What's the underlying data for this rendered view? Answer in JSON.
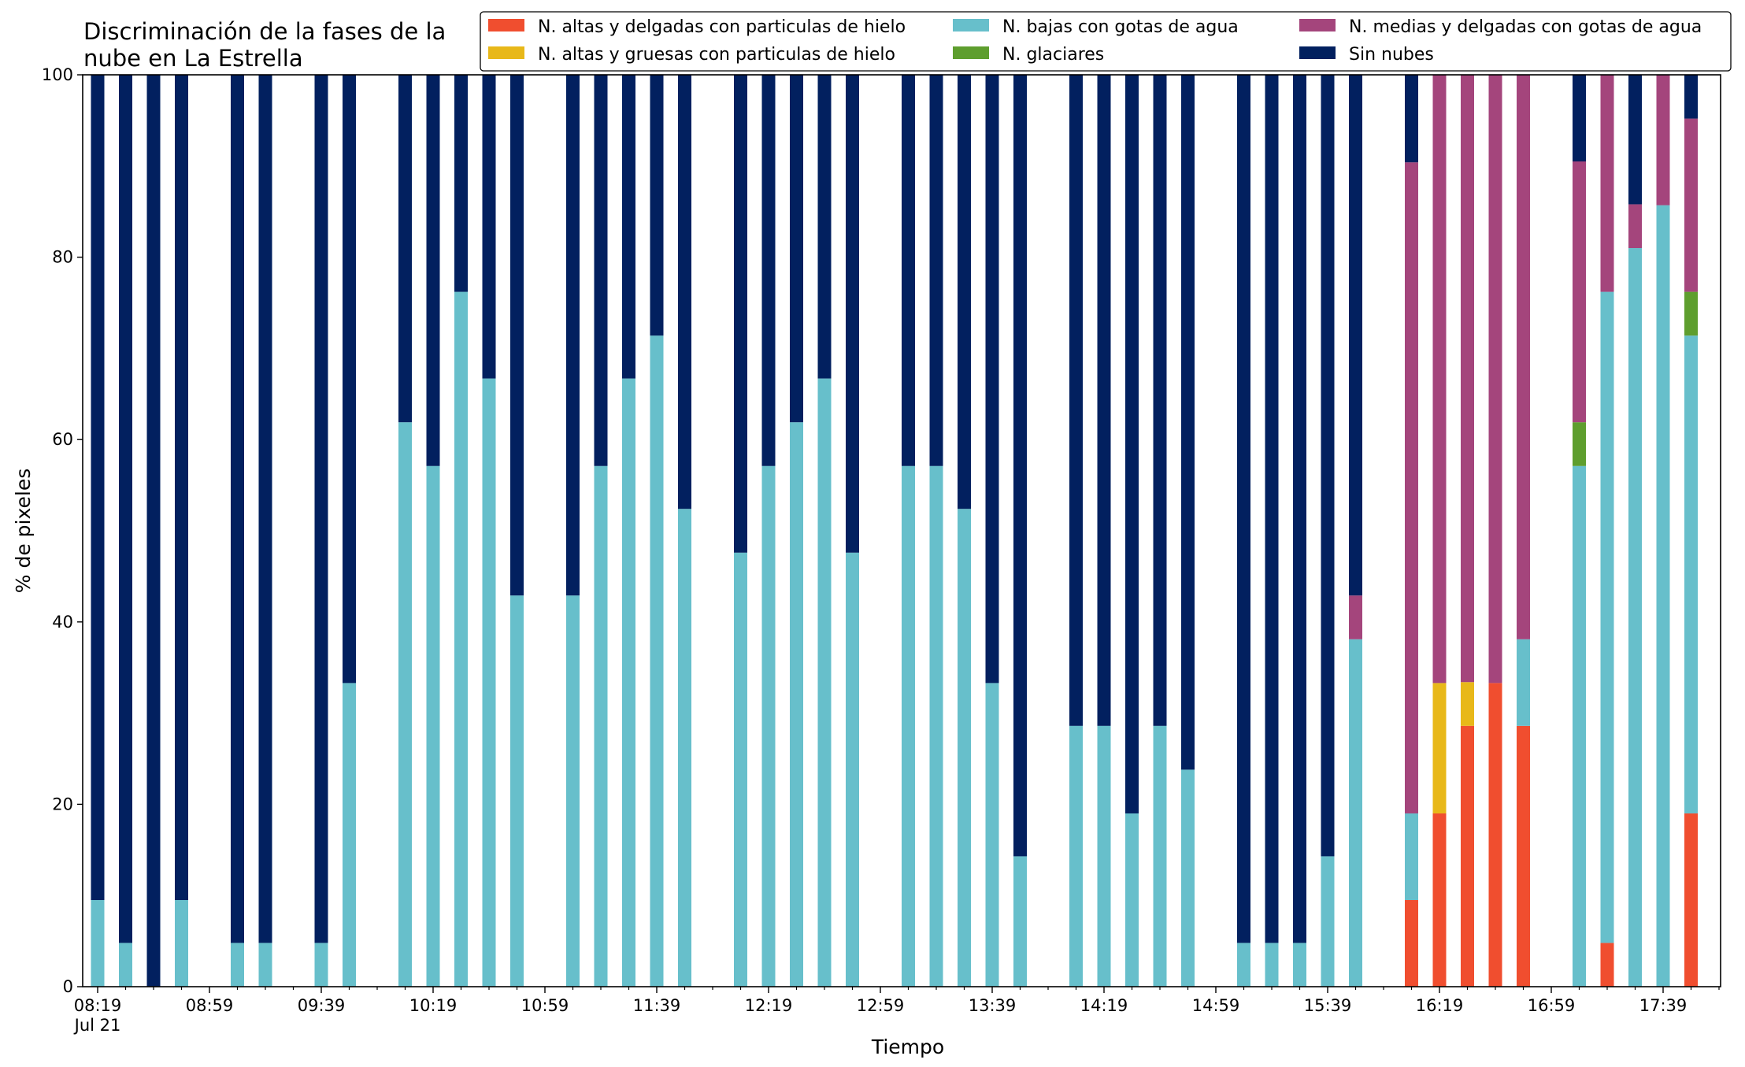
{
  "chart_data": {
    "type": "bar",
    "stacked": true,
    "title_lines": [
      "Discriminación de la fases de la",
      "nube en La Estrella"
    ],
    "xlabel": "Tiempo",
    "ylabel": "% de pixeles",
    "ylim": [
      0,
      100
    ],
    "yticks": [
      "0",
      "20",
      "40",
      "60",
      "80",
      "100"
    ],
    "grid": false,
    "legend_position": "top-right",
    "x_major_ticks": [
      {
        "label": "08:19",
        "sub": "Jul 21",
        "bin": 0
      },
      {
        "label": "08:59",
        "bin": 4
      },
      {
        "label": "09:39",
        "bin": 8
      },
      {
        "label": "10:19",
        "bin": 12
      },
      {
        "label": "10:59",
        "bin": 16
      },
      {
        "label": "11:39",
        "bin": 20
      },
      {
        "label": "12:19",
        "bin": 24
      },
      {
        "label": "12:59",
        "bin": 28
      },
      {
        "label": "13:39",
        "bin": 32
      },
      {
        "label": "14:19",
        "bin": 36
      },
      {
        "label": "14:59",
        "bin": 40
      },
      {
        "label": "15:39",
        "bin": 44
      },
      {
        "label": "16:19",
        "bin": 48
      },
      {
        "label": "16:59",
        "bin": 52
      },
      {
        "label": "17:39",
        "bin": 56
      }
    ],
    "x_bins_total": 59,
    "series": [
      {
        "key": "alt_del_hielo",
        "name": "N. altas y delgadas con particulas de hielo",
        "color": "#f04e2f"
      },
      {
        "key": "alt_grue_hielo",
        "name": "N. altas y gruesas con particulas de hielo",
        "color": "#e8b819"
      },
      {
        "key": "bajas_agua",
        "name": "N. bajas con gotas de agua",
        "color": "#67bfcb"
      },
      {
        "key": "glaciares",
        "name": "N. glaciares",
        "color": "#5e9e2e"
      },
      {
        "key": "medias_agua",
        "name": "N. medias y delgadas con gotas de agua",
        "color": "#a4457c"
      },
      {
        "key": "sin_nubes",
        "name": "Sin nubes",
        "color": "#02205f"
      }
    ],
    "bars": [
      {
        "bin": 0,
        "values": [
          0,
          0,
          9.5,
          0,
          0,
          90.5
        ]
      },
      {
        "bin": 1,
        "values": [
          0,
          0,
          4.8,
          0,
          0,
          95.2
        ]
      },
      {
        "bin": 2,
        "values": [
          0,
          0,
          0,
          0,
          0,
          100
        ]
      },
      {
        "bin": 3,
        "values": [
          0,
          0,
          9.5,
          0,
          0,
          90.5
        ]
      },
      {
        "bin": 5,
        "values": [
          0,
          0,
          4.8,
          0,
          0,
          95.2
        ]
      },
      {
        "bin": 6,
        "values": [
          0,
          0,
          4.8,
          0,
          0,
          95.2
        ]
      },
      {
        "bin": 8,
        "values": [
          0,
          0,
          4.8,
          0,
          0,
          95.2
        ]
      },
      {
        "bin": 9,
        "values": [
          0,
          0,
          33.3,
          0,
          0,
          66.7
        ]
      },
      {
        "bin": 11,
        "values": [
          0,
          0,
          61.9,
          0,
          0,
          38.1
        ]
      },
      {
        "bin": 12,
        "values": [
          0,
          0,
          57.1,
          0,
          0,
          42.9
        ]
      },
      {
        "bin": 13,
        "values": [
          0,
          0,
          76.2,
          0,
          0,
          23.8
        ]
      },
      {
        "bin": 14,
        "values": [
          0,
          0,
          66.7,
          0,
          0,
          33.3
        ]
      },
      {
        "bin": 15,
        "values": [
          0,
          0,
          42.9,
          0,
          0,
          57.1
        ]
      },
      {
        "bin": 17,
        "values": [
          0,
          0,
          42.9,
          0,
          0,
          57.1
        ]
      },
      {
        "bin": 18,
        "values": [
          0,
          0,
          57.1,
          0,
          0,
          42.9
        ]
      },
      {
        "bin": 19,
        "values": [
          0,
          0,
          66.7,
          0,
          0,
          33.3
        ]
      },
      {
        "bin": 20,
        "values": [
          0,
          0,
          71.4,
          0,
          0,
          28.6
        ]
      },
      {
        "bin": 21,
        "values": [
          0,
          0,
          52.4,
          0,
          0,
          47.6
        ]
      },
      {
        "bin": 23,
        "values": [
          0,
          0,
          47.6,
          0,
          0,
          52.4
        ]
      },
      {
        "bin": 24,
        "values": [
          0,
          0,
          57.1,
          0,
          0,
          42.9
        ]
      },
      {
        "bin": 25,
        "values": [
          0,
          0,
          61.9,
          0,
          0,
          38.1
        ]
      },
      {
        "bin": 26,
        "values": [
          0,
          0,
          66.7,
          0,
          0,
          33.3
        ]
      },
      {
        "bin": 27,
        "values": [
          0,
          0,
          47.6,
          0,
          0,
          52.4
        ]
      },
      {
        "bin": 29,
        "values": [
          0,
          0,
          57.1,
          0,
          0,
          42.9
        ]
      },
      {
        "bin": 30,
        "values": [
          0,
          0,
          57.1,
          0,
          0,
          42.9
        ]
      },
      {
        "bin": 31,
        "values": [
          0,
          0,
          52.4,
          0,
          0,
          47.6
        ]
      },
      {
        "bin": 32,
        "values": [
          0,
          0,
          33.3,
          0,
          0,
          66.7
        ]
      },
      {
        "bin": 33,
        "values": [
          0,
          0,
          14.3,
          0,
          0,
          85.7
        ]
      },
      {
        "bin": 35,
        "values": [
          0,
          0,
          28.6,
          0,
          0,
          71.4
        ]
      },
      {
        "bin": 36,
        "values": [
          0,
          0,
          28.6,
          0,
          0,
          71.4
        ]
      },
      {
        "bin": 37,
        "values": [
          0,
          0,
          19.0,
          0,
          0,
          81.0
        ]
      },
      {
        "bin": 38,
        "values": [
          0,
          0,
          28.6,
          0,
          0,
          71.4
        ]
      },
      {
        "bin": 39,
        "values": [
          0,
          0,
          23.8,
          0,
          0,
          76.2
        ]
      },
      {
        "bin": 41,
        "values": [
          0,
          0,
          4.8,
          0,
          0,
          95.2
        ]
      },
      {
        "bin": 42,
        "values": [
          0,
          0,
          4.8,
          0,
          0,
          95.2
        ]
      },
      {
        "bin": 43,
        "values": [
          0,
          0,
          4.8,
          0,
          0,
          95.2
        ]
      },
      {
        "bin": 44,
        "values": [
          0,
          0,
          14.3,
          0,
          0,
          85.7
        ]
      },
      {
        "bin": 45,
        "values": [
          0,
          0,
          38.1,
          0,
          4.8,
          57.1
        ]
      },
      {
        "bin": 47,
        "values": [
          9.5,
          0,
          9.5,
          0,
          71.4,
          9.6
        ]
      },
      {
        "bin": 48,
        "values": [
          19.0,
          14.3,
          0,
          0,
          66.7,
          0
        ]
      },
      {
        "bin": 49,
        "values": [
          28.6,
          4.8,
          0,
          0,
          66.6,
          0
        ]
      },
      {
        "bin": 50,
        "values": [
          33.3,
          0,
          0,
          0,
          66.7,
          0
        ]
      },
      {
        "bin": 51,
        "values": [
          28.6,
          0,
          9.5,
          0,
          61.9,
          0
        ]
      },
      {
        "bin": 53,
        "values": [
          0,
          0,
          57.1,
          4.8,
          28.6,
          9.5
        ]
      },
      {
        "bin": 54,
        "values": [
          4.8,
          0,
          71.4,
          0,
          23.8,
          0
        ]
      },
      {
        "bin": 55,
        "values": [
          0,
          0,
          81.0,
          0,
          4.8,
          14.2
        ]
      },
      {
        "bin": 56,
        "values": [
          0,
          0,
          85.7,
          0,
          14.3,
          0
        ]
      },
      {
        "bin": 57,
        "values": [
          19.0,
          0,
          52.4,
          4.8,
          19.0,
          4.8
        ]
      }
    ]
  }
}
